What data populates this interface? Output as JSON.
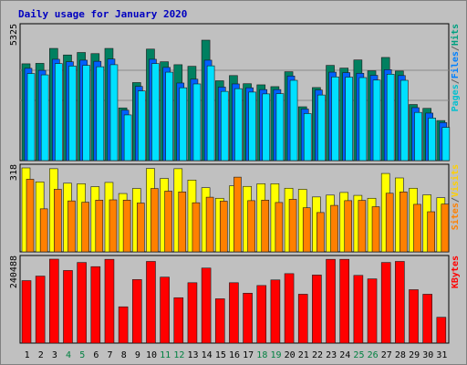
{
  "chart_data": {
    "type": "bar",
    "title": "Daily usage for January 2020",
    "categories": [
      "1",
      "2",
      "3",
      "4",
      "5",
      "6",
      "7",
      "8",
      "9",
      "10",
      "11",
      "12",
      "13",
      "14",
      "15",
      "16",
      "17",
      "18",
      "19",
      "20",
      "21",
      "22",
      "23",
      "24",
      "25",
      "26",
      "27",
      "28",
      "29",
      "30",
      "31"
    ],
    "weekend_days": [
      "4",
      "5",
      "11",
      "12",
      "18",
      "19",
      "25",
      "26"
    ],
    "panels": [
      {
        "id": "hits-files-pages",
        "ymax_label": "5325",
        "ymax": 5325,
        "legend": [
          "Pages",
          "/",
          "Files",
          "/",
          "Hits"
        ],
        "legend_colors": [
          "#00c0d0",
          "#606060",
          "#0080ff",
          "#606060",
          "#00a080"
        ],
        "series": [
          {
            "name": "Hits",
            "color": "#008060",
            "values": [
              4280,
              4300,
              4960,
              4670,
              4780,
              4730,
              4960,
              2330,
              3450,
              4930,
              4370,
              4240,
              4170,
              5325,
              3530,
              3760,
              3400,
              3350,
              3270,
              3930,
              2380,
              3230,
              4210,
              4090,
              4450,
              3970,
              4560,
              3960,
              2480,
              2310,
              1770
            ]
          },
          {
            "name": "Files",
            "color": "#0060ff",
            "values": [
              4080,
              3990,
              4480,
              4370,
              4440,
              4390,
              4490,
              2230,
              3280,
              4480,
              4120,
              3430,
              3600,
              4440,
              3250,
              3390,
              3220,
              3140,
              3140,
              3740,
              2280,
              3120,
              3910,
              3890,
              3860,
              3770,
              4020,
              3760,
              2340,
              2100,
              1680
            ]
          },
          {
            "name": "Pages",
            "color": "#00e0ff",
            "values": [
              3850,
              3790,
              4290,
              4180,
              4210,
              4150,
              4240,
              2020,
              3080,
              4290,
              3910,
              3220,
              3390,
              4190,
              3060,
              3180,
              3030,
              2950,
              2960,
              3550,
              2080,
              2900,
              3700,
              3690,
              3670,
              3560,
              3820,
              3550,
              2130,
              1880,
              1470
            ]
          }
        ]
      },
      {
        "id": "visits-sites",
        "ymax_label": "318",
        "ymax": 318,
        "legend": [
          "Sites",
          "/",
          "Visits"
        ],
        "legend_colors": [
          "#ff8000",
          "#606060",
          "#ffd000"
        ],
        "series": [
          {
            "name": "Visits",
            "color": "#ffff00",
            "values": [
              318,
              265,
              315,
              260,
              258,
              247,
              263,
              221,
              240,
              316,
              278,
              315,
              272,
              243,
              203,
              250,
              248,
              258,
              258,
              241,
              237,
              208,
              215,
              225,
              214,
              203,
              297,
              280,
              241,
              216,
              205
            ]
          },
          {
            "name": "Sites",
            "color": "#ff8000",
            "values": [
              275,
              163,
              237,
              193,
              188,
              196,
              197,
              196,
              185,
              240,
              230,
              227,
              186,
              207,
              192,
              283,
              194,
              196,
              187,
              199,
              167,
              149,
              176,
              194,
              195,
              171,
              222,
              227,
              180,
              152,
              181
            ]
          }
        ]
      },
      {
        "id": "kbytes",
        "ymax_label": "240488",
        "ymax": 240488,
        "legend": [
          "KBytes"
        ],
        "legend_colors": [
          "#ff0000"
        ],
        "series": [
          {
            "name": "KBytes",
            "color": "#ff0000",
            "values": [
              179000,
              192000,
              240488,
              208000,
              231000,
              219000,
              240000,
              104000,
              182000,
              234000,
              189000,
              130000,
              173000,
              215000,
              127000,
              173000,
              143000,
              165000,
              181000,
              199000,
              140000,
              195000,
              240000,
              240000,
              194000,
              184000,
              231000,
              234000,
              153000,
              140000,
              74000
            ]
          }
        ]
      }
    ]
  }
}
